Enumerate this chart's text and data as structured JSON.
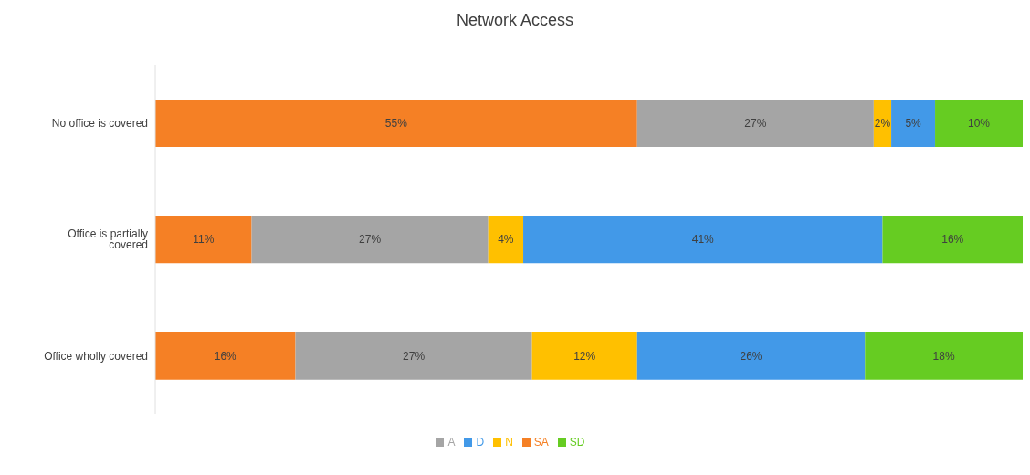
{
  "chart_data": {
    "type": "bar",
    "title": "Network Access",
    "orientation": "horizontal",
    "stacked": true,
    "legend": "bottom",
    "grid": false,
    "categories": [
      "No office is covered",
      "Office is partially covered",
      "Office wholly covered"
    ],
    "series": [
      {
        "name": "SA",
        "color": "#f58025",
        "values": [
          55,
          11,
          16
        ],
        "value_labels": [
          "55%",
          "11%",
          "16%"
        ]
      },
      {
        "name": "A",
        "color": "#a5a5a5",
        "values": [
          27,
          27,
          27
        ],
        "value_labels": [
          "27%",
          "27%",
          "27%"
        ]
      },
      {
        "name": "N",
        "color": "#ffc000",
        "values": [
          2,
          4,
          12
        ],
        "value_labels": [
          "2%",
          "4%",
          "12%"
        ]
      },
      {
        "name": "D",
        "color": "#4299e8",
        "values": [
          5,
          41,
          26
        ],
        "value_labels": [
          "5%",
          "41%",
          "26%"
        ]
      },
      {
        "name": "SD",
        "color": "#66cc22",
        "values": [
          10,
          16,
          18
        ],
        "value_labels": [
          "10%",
          "16%",
          "18%"
        ]
      }
    ]
  }
}
